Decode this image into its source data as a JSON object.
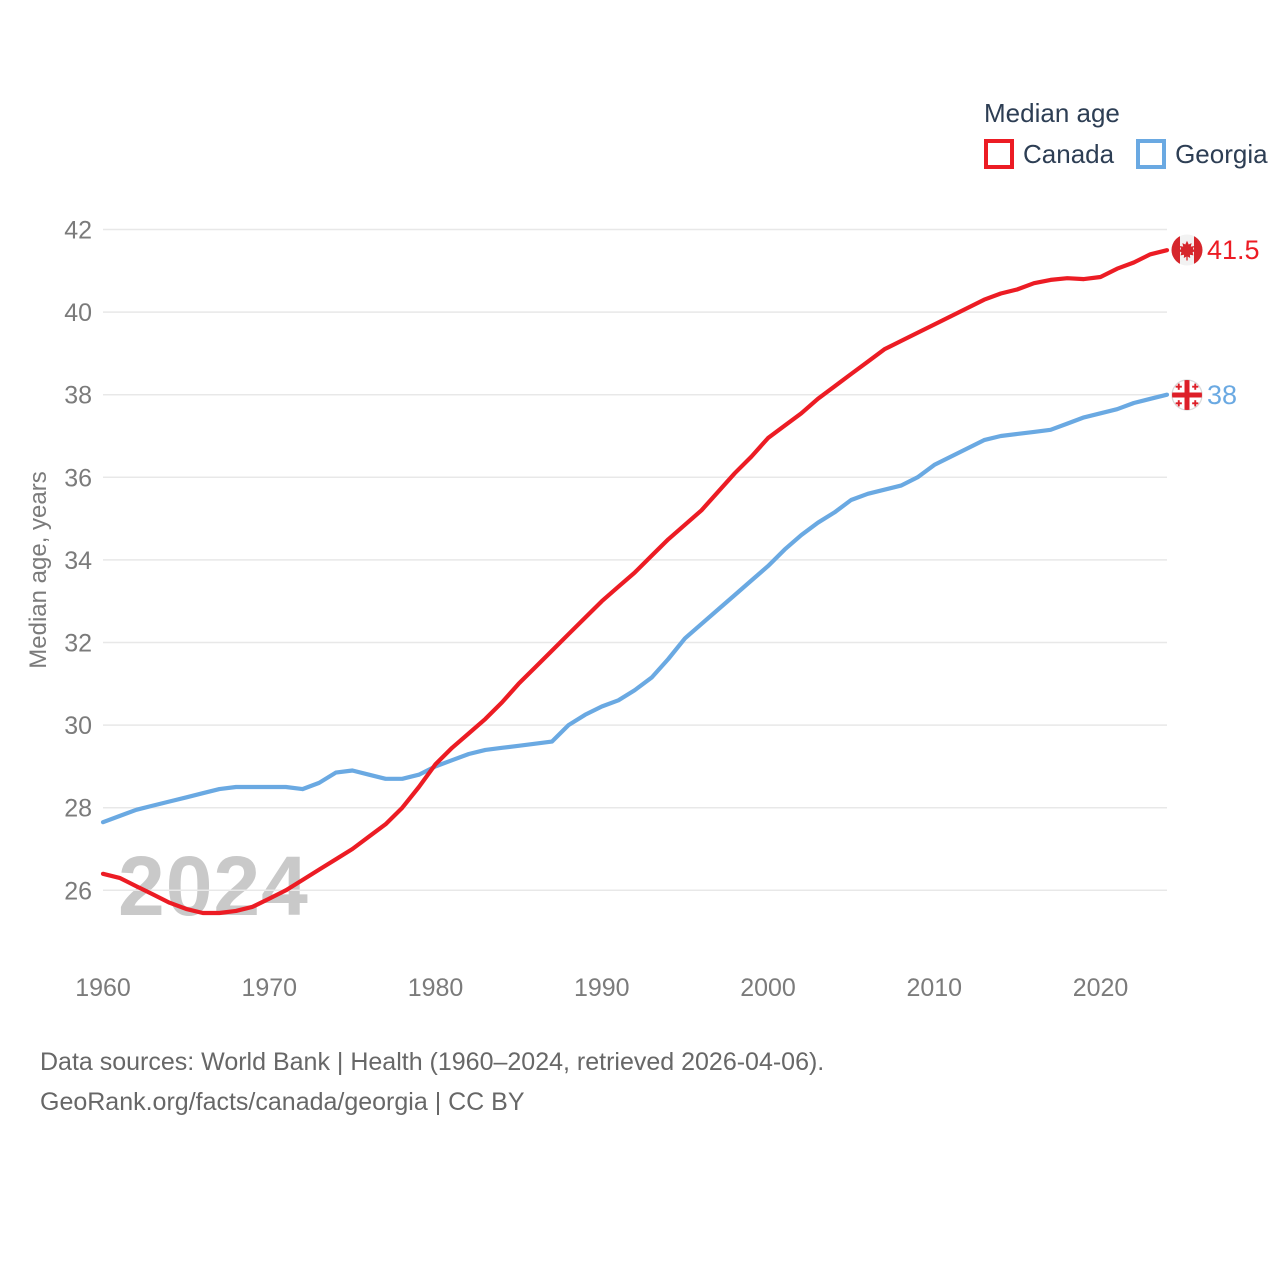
{
  "colors": {
    "canada": "#ec1c24",
    "georgia": "#6aa9e2",
    "grid": "#e8e8e8",
    "axis_text": "#7b7b7b",
    "dark_text": "#2d3e54",
    "watermark": "#c9c9c9",
    "footer_text": "#676767",
    "flag_red": "#d6262c"
  },
  "legend": {
    "title": "Median age",
    "items": [
      {
        "label": "Canada",
        "color": "#ec1c24",
        "swatch_icon": "red-outline-box"
      },
      {
        "label": "Georgia",
        "color": "#6aa9e2",
        "swatch_icon": "blue-outline-box"
      }
    ]
  },
  "watermark": "2024",
  "chart_data": {
    "type": "line",
    "title": "Median age",
    "ylabel": "Median age, years",
    "xlabel": "",
    "grid": "horizontal",
    "legend_position": "top-right",
    "ylim": [
      25,
      42.5
    ],
    "xlim": [
      1960,
      2024
    ],
    "yticks": [
      26,
      28,
      30,
      32,
      34,
      36,
      38,
      40,
      42
    ],
    "xticks": [
      1960,
      1970,
      1980,
      1990,
      2000,
      2010,
      2020
    ],
    "x": [
      1960,
      1961,
      1962,
      1963,
      1964,
      1965,
      1966,
      1967,
      1968,
      1969,
      1970,
      1971,
      1972,
      1973,
      1974,
      1975,
      1976,
      1977,
      1978,
      1979,
      1980,
      1981,
      1982,
      1983,
      1984,
      1985,
      1986,
      1987,
      1988,
      1989,
      1990,
      1991,
      1992,
      1993,
      1994,
      1995,
      1996,
      1997,
      1998,
      1999,
      2000,
      2001,
      2002,
      2003,
      2004,
      2005,
      2006,
      2007,
      2008,
      2009,
      2010,
      2011,
      2012,
      2013,
      2014,
      2015,
      2016,
      2017,
      2018,
      2019,
      2020,
      2021,
      2022,
      2023,
      2024
    ],
    "series": [
      {
        "name": "Canada",
        "color": "#ec1c24",
        "end_label": "41.5",
        "end_flag_icon": "canada-flag-icon",
        "values": [
          26.4,
          26.3,
          26.1,
          25.9,
          25.7,
          25.55,
          25.45,
          25.45,
          25.5,
          25.6,
          25.8,
          26.0,
          26.25,
          26.5,
          26.75,
          27.0,
          27.3,
          27.6,
          28.0,
          28.5,
          29.05,
          29.45,
          29.8,
          30.15,
          30.55,
          31.0,
          31.4,
          31.8,
          32.2,
          32.6,
          33.0,
          33.35,
          33.7,
          34.1,
          34.5,
          34.85,
          35.2,
          35.65,
          36.1,
          36.5,
          36.95,
          37.25,
          37.55,
          37.9,
          38.2,
          38.5,
          38.8,
          39.1,
          39.3,
          39.5,
          39.7,
          39.9,
          40.1,
          40.3,
          40.45,
          40.55,
          40.7,
          40.78,
          40.82,
          40.8,
          40.85,
          41.05,
          41.2,
          41.4,
          41.5
        ]
      },
      {
        "name": "Georgia",
        "color": "#6aa9e2",
        "end_label": "38",
        "end_flag_icon": "georgia-flag-icon",
        "values": [
          27.65,
          27.8,
          27.95,
          28.05,
          28.15,
          28.25,
          28.35,
          28.45,
          28.5,
          28.5,
          28.5,
          28.5,
          28.45,
          28.6,
          28.85,
          28.9,
          28.8,
          28.7,
          28.7,
          28.8,
          29.0,
          29.15,
          29.3,
          29.4,
          29.45,
          29.5,
          29.55,
          29.6,
          30.0,
          30.25,
          30.45,
          30.6,
          30.85,
          31.15,
          31.6,
          32.1,
          32.45,
          32.8,
          33.15,
          33.5,
          33.85,
          34.25,
          34.6,
          34.9,
          35.15,
          35.45,
          35.6,
          35.7,
          35.8,
          36.0,
          36.3,
          36.5,
          36.7,
          36.9,
          37.0,
          37.05,
          37.1,
          37.15,
          37.3,
          37.45,
          37.55,
          37.65,
          37.8,
          37.9,
          38.0
        ]
      }
    ]
  },
  "footer": {
    "line1": "Data sources: World Bank | Health (1960–2024, retrieved 2026-04-06).",
    "line2": "GeoRank.org/facts/canada/georgia | CC BY"
  }
}
